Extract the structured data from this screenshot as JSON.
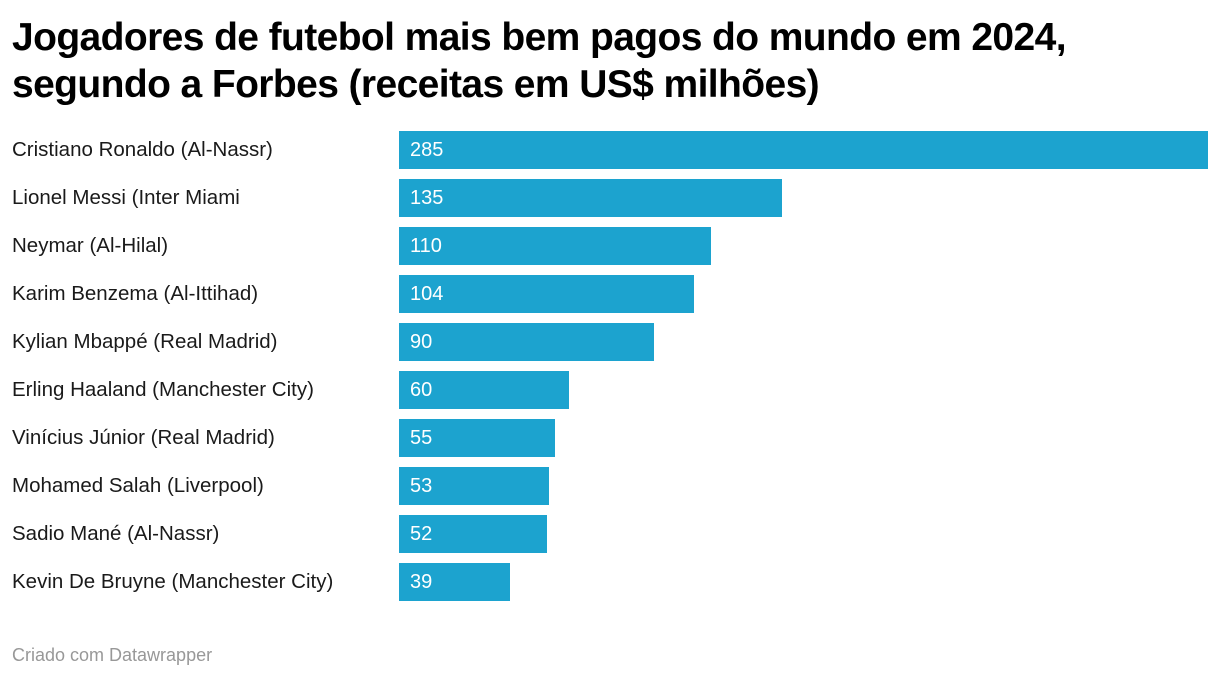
{
  "header": {
    "title_lines": [
      "Jogadores de futebol mais bem pagos do mundo em 2024,",
      "segundo a Forbes (receitas em US$ milhões)"
    ]
  },
  "chart_data": {
    "type": "bar",
    "orientation": "horizontal",
    "title": "Jogadores de futebol mais bem pagos do mundo em 2024, segundo a Forbes (receitas em US$ milhões)",
    "categories": [
      "Cristiano Ronaldo (Al-Nassr)",
      "Lionel Messi (Inter Miami",
      "Neymar (Al-Hilal)",
      "Karim Benzema (Al-Ittihad)",
      "Kylian Mbappé (Real Madrid)",
      "Erling Haaland (Manchester City)",
      "Vinícius Júnior (Real Madrid)",
      "Mohamed Salah (Liverpool)",
      "Sadio Mané (Al-Nassr)",
      "Kevin De Bruyne (Manchester City)"
    ],
    "values": [
      285,
      135,
      110,
      104,
      90,
      60,
      55,
      53,
      52,
      39
    ],
    "value_labels": [
      "285",
      "135",
      "110",
      "104",
      "90",
      "60",
      "55",
      "53",
      "52",
      "39"
    ],
    "xlabel": "",
    "ylabel": "",
    "xlim": [
      0,
      285
    ],
    "grid": false,
    "legend": false,
    "value_labels_inside_bar": true,
    "bar_color": "#1ca3cf",
    "value_label_color": "#ffffff",
    "category_label_color": "#1a1a1a",
    "title_color": "#000000"
  },
  "footer": {
    "text": "Criado com Datawrapper"
  }
}
